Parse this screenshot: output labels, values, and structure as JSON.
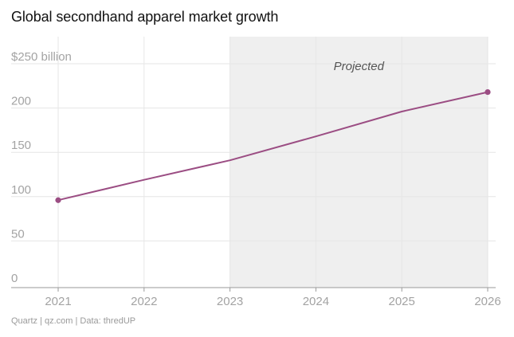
{
  "chart_data": {
    "type": "line",
    "title": "Global secondhand apparel market growth",
    "xlabel": "",
    "ylabel": "",
    "x": [
      2021,
      2022,
      2023,
      2024,
      2025,
      2026
    ],
    "series": [
      {
        "name": "Global secondhand apparel market",
        "values": [
          96,
          119,
          141,
          168,
          196,
          218
        ],
        "color": "#9b4d83"
      }
    ],
    "ylim": [
      0,
      250
    ],
    "yticks": [
      0,
      50,
      100,
      150,
      200,
      250
    ],
    "ytick_labels": [
      "0",
      "50",
      "100",
      "150",
      "200",
      "$250 billion"
    ],
    "xtick_labels": [
      "2021",
      "2022",
      "2023",
      "2024",
      "2025",
      "2026"
    ],
    "xlim": [
      2021,
      2026
    ],
    "projection": {
      "from": 2023,
      "to": 2026,
      "label": "Projected",
      "shade_color": "#efefef"
    },
    "grid": true,
    "markers": "endpoints",
    "source": "Quartz | qz.com | Data: thredUP"
  }
}
